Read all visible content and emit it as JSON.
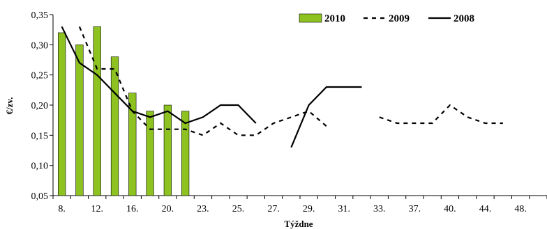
{
  "chart_data": {
    "type": "bar",
    "title": "",
    "xlabel": "Týždne",
    "ylabel": "€/zv.",
    "ylim": [
      0.05,
      0.35
    ],
    "yticks": [
      "0,05",
      "0,10",
      "0,15",
      "0,20",
      "0,25",
      "0,30",
      "0,35"
    ],
    "ytick_values": [
      0.05,
      0.1,
      0.15,
      0.2,
      0.25,
      0.3,
      0.35
    ],
    "categories": [
      "8.",
      "",
      "12.",
      "",
      "16.",
      "",
      "20.",
      "",
      "23.",
      "",
      "25.",
      "",
      "27.",
      "",
      "29.",
      "",
      "31.",
      "",
      "33.",
      "",
      "37.",
      "",
      "40.",
      "",
      "44.",
      "",
      "48.",
      ""
    ],
    "grid": false,
    "legend_position": "top-right",
    "series": [
      {
        "name": "2010",
        "type": "bar",
        "color": "#8dc220",
        "values": [
          0.32,
          0.3,
          0.33,
          0.28,
          0.22,
          0.19,
          0.2,
          0.19,
          null,
          null,
          null,
          null,
          null,
          null,
          null,
          null,
          null,
          null,
          null,
          null,
          null,
          null,
          null,
          null,
          null,
          null,
          null,
          null
        ]
      },
      {
        "name": "2009",
        "type": "line",
        "style": "dashed",
        "color": "#000000",
        "values": [
          null,
          0.33,
          0.26,
          0.26,
          0.19,
          0.16,
          0.16,
          0.16,
          0.15,
          0.17,
          0.15,
          0.15,
          0.17,
          0.18,
          0.19,
          0.165,
          null,
          null,
          0.18,
          0.17,
          0.17,
          0.17,
          0.2,
          0.18,
          0.17,
          0.17,
          null,
          null
        ]
      },
      {
        "name": "2008",
        "type": "line",
        "style": "solid",
        "color": "#000000",
        "values": [
          0.33,
          0.27,
          0.25,
          0.22,
          0.19,
          0.18,
          0.19,
          0.17,
          0.18,
          0.2,
          0.2,
          0.17,
          null,
          0.13,
          0.2,
          0.23,
          0.23,
          0.23,
          null,
          null,
          null,
          null,
          null,
          null,
          null,
          null,
          null,
          null
        ]
      }
    ]
  }
}
